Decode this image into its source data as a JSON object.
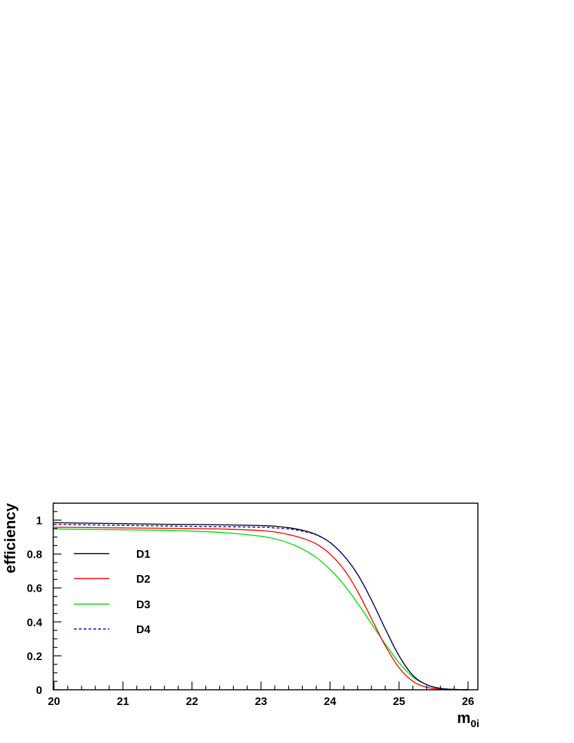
{
  "chart_data": {
    "type": "line",
    "title": "",
    "xlabel": "m",
    "xlabel_sub": "0i",
    "ylabel": "efficiency",
    "xlim": [
      20,
      26.15
    ],
    "ylim": [
      0,
      1.1
    ],
    "x_ticks": [
      20,
      21,
      22,
      23,
      24,
      25,
      26
    ],
    "x_tick_labels": [
      "20",
      "21",
      "22",
      "23",
      "24",
      "25",
      "26"
    ],
    "y_ticks": [
      0,
      0.2,
      0.4,
      0.6,
      0.8,
      1
    ],
    "y_tick_labels": [
      "0",
      "0.2",
      "0.4",
      "0.6",
      "0.8",
      "1"
    ],
    "grid": false,
    "legend_position": "left",
    "series": [
      {
        "name": "D1",
        "color": "#000000",
        "dash": "solid",
        "x": [
          20.0,
          20.5,
          21.0,
          21.5,
          22.0,
          22.5,
          23.0,
          23.2,
          23.4,
          23.6,
          23.8,
          24.0,
          24.2,
          24.4,
          24.6,
          24.8,
          25.0,
          25.2,
          25.4,
          25.6,
          25.8,
          26.0
        ],
        "y": [
          0.985,
          0.982,
          0.979,
          0.976,
          0.974,
          0.972,
          0.968,
          0.964,
          0.955,
          0.94,
          0.915,
          0.868,
          0.79,
          0.68,
          0.53,
          0.36,
          0.2,
          0.085,
          0.03,
          0.008,
          0.002,
          0.0
        ]
      },
      {
        "name": "D2",
        "color": "#ff0000",
        "dash": "solid",
        "x": [
          20.0,
          20.5,
          21.0,
          21.5,
          22.0,
          22.5,
          23.0,
          23.2,
          23.4,
          23.6,
          23.8,
          24.0,
          24.2,
          24.4,
          24.6,
          24.8,
          25.0,
          25.2,
          25.4,
          25.6,
          25.8,
          26.0
        ],
        "y": [
          0.958,
          0.956,
          0.954,
          0.952,
          0.95,
          0.947,
          0.938,
          0.93,
          0.915,
          0.893,
          0.86,
          0.8,
          0.71,
          0.58,
          0.42,
          0.26,
          0.13,
          0.05,
          0.015,
          0.004,
          0.001,
          0.0
        ]
      },
      {
        "name": "D3",
        "color": "#00dd00",
        "dash": "solid",
        "x": [
          20.0,
          20.5,
          21.0,
          21.5,
          22.0,
          22.5,
          23.0,
          23.2,
          23.4,
          23.6,
          23.8,
          24.0,
          24.2,
          24.4,
          24.6,
          24.8,
          25.0,
          25.2,
          25.4,
          25.6,
          25.8,
          26.0
        ],
        "y": [
          0.948,
          0.945,
          0.943,
          0.94,
          0.935,
          0.925,
          0.905,
          0.89,
          0.865,
          0.83,
          0.78,
          0.71,
          0.62,
          0.51,
          0.39,
          0.27,
          0.16,
          0.075,
          0.03,
          0.008,
          0.002,
          0.0
        ]
      },
      {
        "name": "D4",
        "color": "#0000cc",
        "dash": "dashed",
        "x": [
          20.0,
          20.5,
          21.0,
          21.5,
          22.0,
          22.5,
          23.0,
          23.2,
          23.4,
          23.6,
          23.8,
          24.0,
          24.2,
          24.4,
          24.6,
          24.8,
          25.0,
          25.2,
          25.4,
          25.6,
          25.8,
          26.0
        ],
        "y": [
          0.975,
          0.972,
          0.969,
          0.966,
          0.963,
          0.961,
          0.958,
          0.954,
          0.948,
          0.935,
          0.913,
          0.868,
          0.79,
          0.68,
          0.53,
          0.36,
          0.2,
          0.085,
          0.03,
          0.008,
          0.002,
          0.0
        ]
      }
    ]
  }
}
